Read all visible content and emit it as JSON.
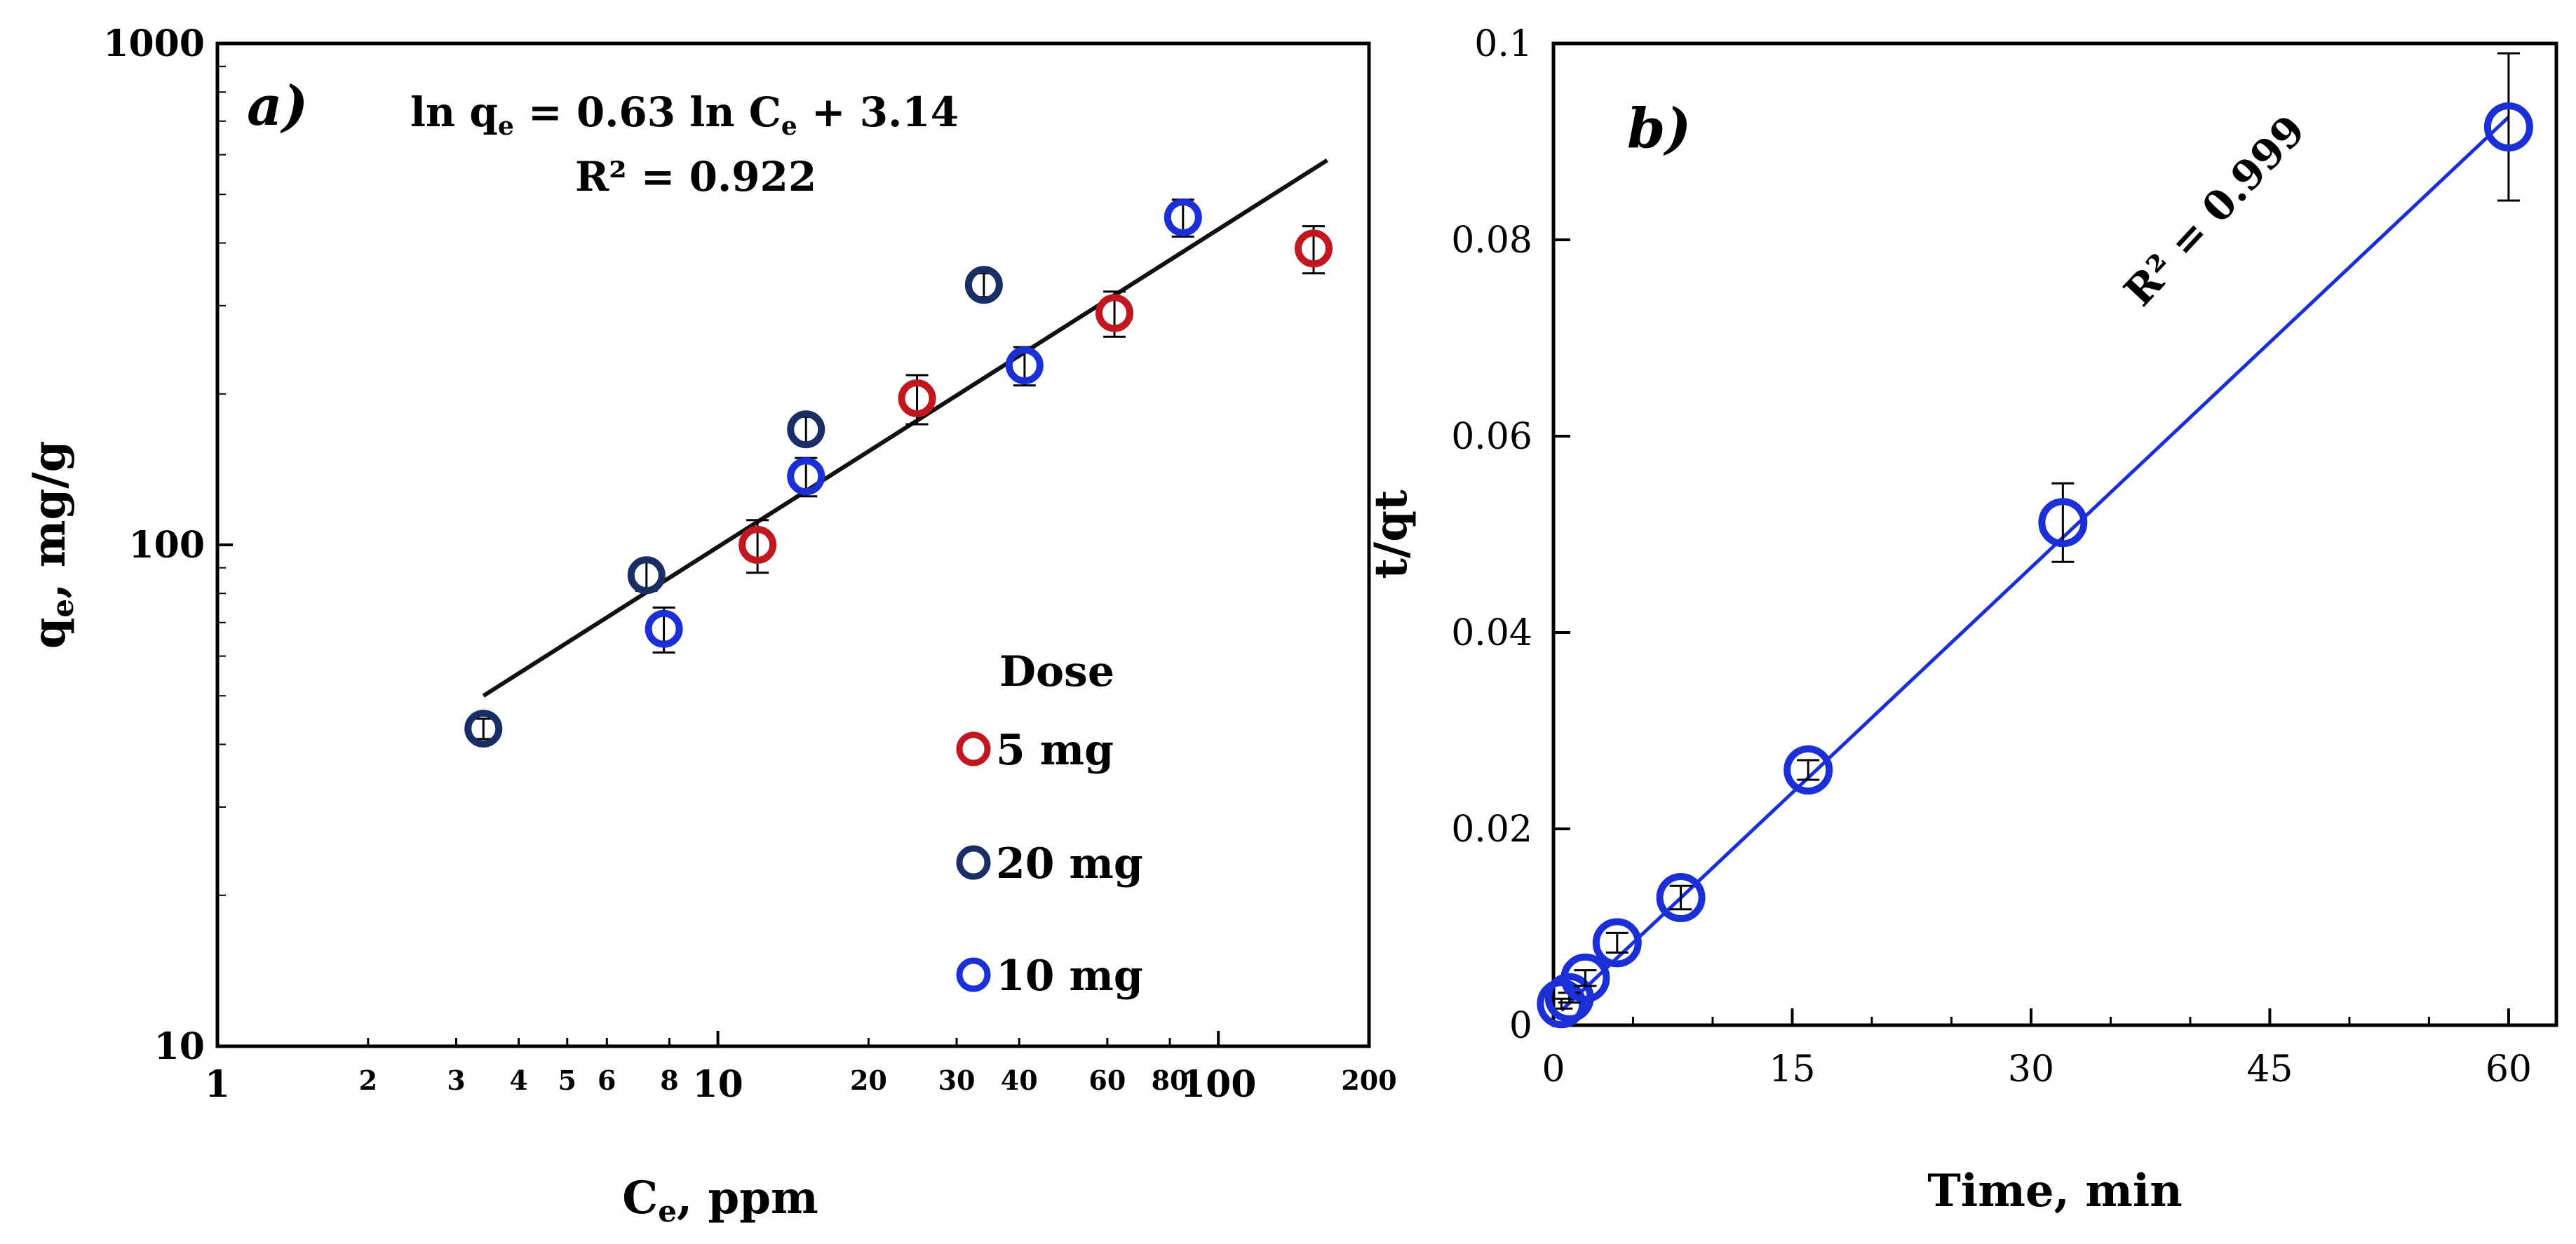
{
  "chart_data": [
    {
      "type": "scatter",
      "panel_label": "a)",
      "xlabel_main": "C",
      "xlabel_sub": "e",
      "xlabel_rest": ", ppm",
      "ylabel_main": "q",
      "ylabel_sub": "e",
      "ylabel_rest": ", mg/g",
      "xscale": "log",
      "yscale": "log",
      "xlim": [
        1,
        200
      ],
      "ylim": [
        10,
        1000
      ],
      "x_major_ticks": [
        1,
        10,
        100
      ],
      "x_minor_ticks": [
        2,
        3,
        4,
        5,
        6,
        8,
        20,
        30,
        40,
        60,
        80,
        200
      ],
      "y_major_ticks": [
        10,
        100,
        1000
      ],
      "equation": {
        "p1": "ln q",
        "s1": "e",
        "p2": " =  0.63 ln C",
        "s2": "e",
        "p3": " + 3.14"
      },
      "r2": "R² = 0.922",
      "legend_title": "Dose",
      "legend_placement": "right",
      "fit_line": {
        "x": [
          3.4,
          165
        ],
        "y": [
          50,
          585
        ],
        "color": "#111111"
      },
      "series": [
        {
          "name": "5 mg",
          "color": "#c0181e",
          "x": [
            12,
            25,
            62,
            155
          ],
          "y": [
            100,
            196,
            290,
            390
          ],
          "err": [
            12,
            22,
            30,
            42
          ]
        },
        {
          "name": "20 mg",
          "color": "#1a2e66",
          "x": [
            3.4,
            7.2,
            15,
            34
          ],
          "y": [
            43,
            87,
            170,
            330
          ],
          "err": [
            2,
            6,
            10,
            18
          ]
        },
        {
          "name": "10 mg",
          "color": "#1a2fd6",
          "x": [
            7.8,
            15,
            41,
            85
          ],
          "y": [
            68,
            137,
            228,
            450
          ],
          "err": [
            7,
            12,
            20,
            38
          ]
        }
      ]
    },
    {
      "type": "scatter",
      "panel_label": "b)",
      "xlabel": "Time, min",
      "ylabel": "t/qt",
      "xlim": [
        0,
        63
      ],
      "ylim": [
        0,
        0.1
      ],
      "x_ticks": [
        0,
        15,
        30,
        45,
        60
      ],
      "y_ticks": [
        0,
        0.02,
        0.04,
        0.06,
        0.08,
        0.1
      ],
      "r2": "R² = 0.999",
      "fit_line": {
        "x": [
          0.5,
          60
        ],
        "y": [
          0.0015,
          0.0925
        ],
        "color": "#1a2fd6"
      },
      "series": [
        {
          "color": "#1a2fd6",
          "x": [
            0.5,
            1,
            2,
            4,
            8,
            16,
            32,
            60
          ],
          "y": [
            0.0022,
            0.0028,
            0.0048,
            0.0084,
            0.013,
            0.026,
            0.0512,
            0.0915
          ],
          "err": [
            0.0005,
            0.0005,
            0.0008,
            0.001,
            0.0012,
            0.001,
            0.004,
            0.0075
          ]
        }
      ]
    }
  ]
}
